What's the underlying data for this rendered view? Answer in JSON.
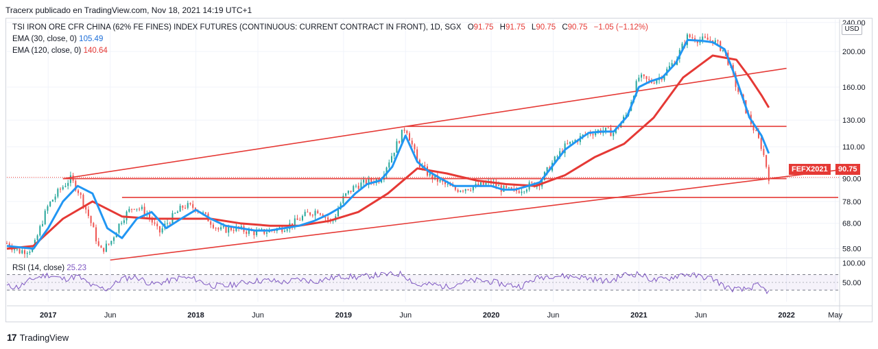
{
  "header": {
    "text": "Tracerx publicado en TradingView.com, Nov 18, 2021 14:19 UTC+1"
  },
  "legend": {
    "symbol": "TSI IRON ORE CFR CHINA (62% FE FINES) INDEX FUTURES (CONTINUOUS: CURRENT CONTRACT IN FRONT), 1D, SGX",
    "o_label": "O",
    "o_value": "91.75",
    "h_label": "H",
    "h_value": "91.75",
    "l_label": "L",
    "l_value": "90.75",
    "c_label": "C",
    "c_value": "90.75",
    "change": "−1.05 (−1.12%)",
    "ema30_label": "EMA (30, close, 0)",
    "ema30_value": "105.49",
    "ema120_label": "EMA (120, close, 0)",
    "ema120_value": "140.64",
    "rsi_label": "RSI (14, close)",
    "rsi_value": "25.23"
  },
  "price_axis": {
    "currency": "USD"
  },
  "tags": {
    "symbol_tag": "FEFX2021",
    "price_tag": "90.75"
  },
  "footer": {
    "brand": "TradingView",
    "logo": "17"
  },
  "colors": {
    "ema30": "#2196f3",
    "ema120": "#e53935",
    "trend": "#e53935",
    "rsi": "#7e57c2",
    "up": "#26a69a",
    "down": "#ef5350"
  },
  "chart_data": {
    "type": "candlestick",
    "title": "TSI IRON ORE CFR CHINA (62% FE FINES) INDEX FUTURES",
    "price_ticks": [
      58.0,
      68.0,
      78.0,
      90.0,
      110.0,
      130.0,
      160.0,
      200.0,
      240.0
    ],
    "price_tick_labels": [
      "58.00",
      "68.00",
      "78.00",
      "90.00",
      "110.00",
      "130.00",
      "160.00",
      "200.00",
      "240.00"
    ],
    "rsi_ticks": [
      50,
      100
    ],
    "rsi_tick_labels": [
      "50.00",
      "100.00"
    ],
    "rsi_band": [
      30,
      70
    ],
    "x_range": [
      2016.72,
      2022.35
    ],
    "y_range": [
      55,
      245
    ],
    "time_ticks": [
      2017.0,
      2017.42,
      2018.0,
      2018.42,
      2019.0,
      2019.42,
      2020.0,
      2020.42,
      2021.0,
      2021.42,
      2022.0,
      2022.33
    ],
    "time_labels": [
      "2017",
      "Jun",
      "2018",
      "Jun",
      "2019",
      "Jun",
      "2020",
      "Jun",
      "2021",
      "Jun",
      "2022",
      "May"
    ],
    "close_series": {
      "t": [
        2016.72,
        2016.8,
        2016.9,
        2017.0,
        2017.08,
        2017.15,
        2017.2,
        2017.28,
        2017.35,
        2017.42,
        2017.5,
        2017.58,
        2017.66,
        2017.75,
        2017.83,
        2017.92,
        2018.0,
        2018.08,
        2018.16,
        2018.25,
        2018.33,
        2018.42,
        2018.5,
        2018.58,
        2018.66,
        2018.75,
        2018.83,
        2018.92,
        2019.0,
        2019.08,
        2019.16,
        2019.25,
        2019.33,
        2019.42,
        2019.5,
        2019.58,
        2019.66,
        2019.75,
        2019.83,
        2019.92,
        2020.0,
        2020.08,
        2020.16,
        2020.25,
        2020.33,
        2020.42,
        2020.5,
        2020.58,
        2020.66,
        2020.75,
        2020.83,
        2020.92,
        2021.0,
        2021.08,
        2021.16,
        2021.25,
        2021.33,
        2021.42,
        2021.5,
        2021.58,
        2021.66,
        2021.75,
        2021.83,
        2021.88
      ],
      "close": [
        60,
        57,
        58,
        76,
        84,
        90,
        84,
        70,
        57,
        60,
        70,
        76,
        73,
        64,
        70,
        76,
        75,
        70,
        65,
        66,
        65,
        64,
        65,
        66,
        68,
        72,
        74,
        68,
        80,
        86,
        88,
        90,
        105,
        125,
        100,
        92,
        88,
        84,
        85,
        86,
        88,
        84,
        83,
        86,
        88,
        100,
        110,
        115,
        120,
        122,
        120,
        135,
        170,
        165,
        172,
        190,
        220,
        215,
        215,
        200,
        160,
        130,
        110,
        91
      ]
    },
    "ema30": {
      "t": [
        2016.72,
        2016.9,
        2017.0,
        2017.1,
        2017.2,
        2017.3,
        2017.4,
        2017.5,
        2017.6,
        2017.7,
        2017.8,
        2017.9,
        2018.0,
        2018.1,
        2018.2,
        2018.3,
        2018.4,
        2018.5,
        2018.6,
        2018.7,
        2018.8,
        2018.9,
        2019.0,
        2019.08,
        2019.16,
        2019.25,
        2019.33,
        2019.42,
        2019.5,
        2019.58,
        2019.66,
        2019.75,
        2019.83,
        2019.92,
        2020.0,
        2020.08,
        2020.16,
        2020.25,
        2020.33,
        2020.42,
        2020.5,
        2020.58,
        2020.66,
        2020.75,
        2020.83,
        2020.92,
        2021.0,
        2021.08,
        2021.16,
        2021.25,
        2021.33,
        2021.42,
        2021.5,
        2021.58,
        2021.66,
        2021.75,
        2021.83,
        2021.88
      ],
      "v": [
        59,
        58,
        66,
        78,
        86,
        82,
        66,
        62,
        70,
        73,
        66,
        70,
        74,
        70,
        67,
        66,
        65,
        65,
        66,
        67,
        69,
        72,
        76,
        82,
        87,
        89,
        97,
        118,
        100,
        94,
        90,
        86,
        86,
        86,
        86,
        84,
        84,
        86,
        88,
        98,
        108,
        114,
        120,
        121,
        121,
        133,
        160,
        166,
        170,
        186,
        215,
        214,
        212,
        203,
        168,
        132,
        118,
        105.49
      ]
    },
    "ema120": {
      "t": [
        2016.72,
        2016.9,
        2017.1,
        2017.3,
        2017.5,
        2017.7,
        2017.9,
        2018.1,
        2018.3,
        2018.5,
        2018.7,
        2018.9,
        2019.1,
        2019.3,
        2019.5,
        2019.7,
        2019.9,
        2020.1,
        2020.3,
        2020.5,
        2020.7,
        2020.9,
        2021.1,
        2021.3,
        2021.5,
        2021.66,
        2021.75,
        2021.83,
        2021.88
      ],
      "v": [
        58,
        59,
        70,
        78,
        71,
        70,
        70,
        70,
        68,
        67,
        67,
        69,
        73,
        82,
        96,
        93,
        89,
        87,
        86,
        92,
        103,
        112,
        132,
        170,
        195,
        190,
        170,
        152,
        140.64
      ]
    },
    "trendlines": [
      {
        "name": "upper-channel",
        "from": [
          2017.1,
          90
        ],
        "to": [
          2022.0,
          180
        ]
      },
      {
        "name": "lower-channel",
        "from": [
          2017.42,
          54
        ],
        "to": [
          2022.35,
          95
        ]
      },
      {
        "name": "resistance-2019",
        "from": [
          2019.42,
          125
        ],
        "to": [
          2022.0,
          125
        ]
      },
      {
        "name": "support-90",
        "from": [
          2017.1,
          90
        ],
        "to": [
          2022.0,
          90
        ]
      },
      {
        "name": "support-80",
        "from": [
          2017.5,
          80
        ],
        "to": [
          2022.35,
          80
        ]
      }
    ],
    "rsi": {
      "t": [
        2016.72,
        2016.8,
        2016.9,
        2017.0,
        2017.1,
        2017.2,
        2017.3,
        2017.4,
        2017.5,
        2017.6,
        2017.7,
        2017.8,
        2017.9,
        2018.0,
        2018.1,
        2018.2,
        2018.3,
        2018.4,
        2018.5,
        2018.6,
        2018.7,
        2018.8,
        2018.9,
        2019.0,
        2019.1,
        2019.2,
        2019.3,
        2019.4,
        2019.5,
        2019.6,
        2019.7,
        2019.8,
        2019.9,
        2020.0,
        2020.1,
        2020.2,
        2020.3,
        2020.4,
        2020.5,
        2020.6,
        2020.7,
        2020.8,
        2020.9,
        2021.0,
        2021.1,
        2021.2,
        2021.3,
        2021.4,
        2021.5,
        2021.6,
        2021.7,
        2021.8,
        2021.88
      ],
      "v": [
        40,
        38,
        60,
        70,
        58,
        66,
        40,
        32,
        60,
        64,
        45,
        52,
        63,
        58,
        42,
        40,
        48,
        54,
        55,
        50,
        58,
        52,
        60,
        66,
        63,
        68,
        70,
        72,
        42,
        45,
        38,
        50,
        55,
        52,
        44,
        40,
        60,
        68,
        66,
        64,
        58,
        52,
        70,
        72,
        55,
        60,
        72,
        66,
        60,
        35,
        30,
        42,
        25.23
      ]
    }
  }
}
